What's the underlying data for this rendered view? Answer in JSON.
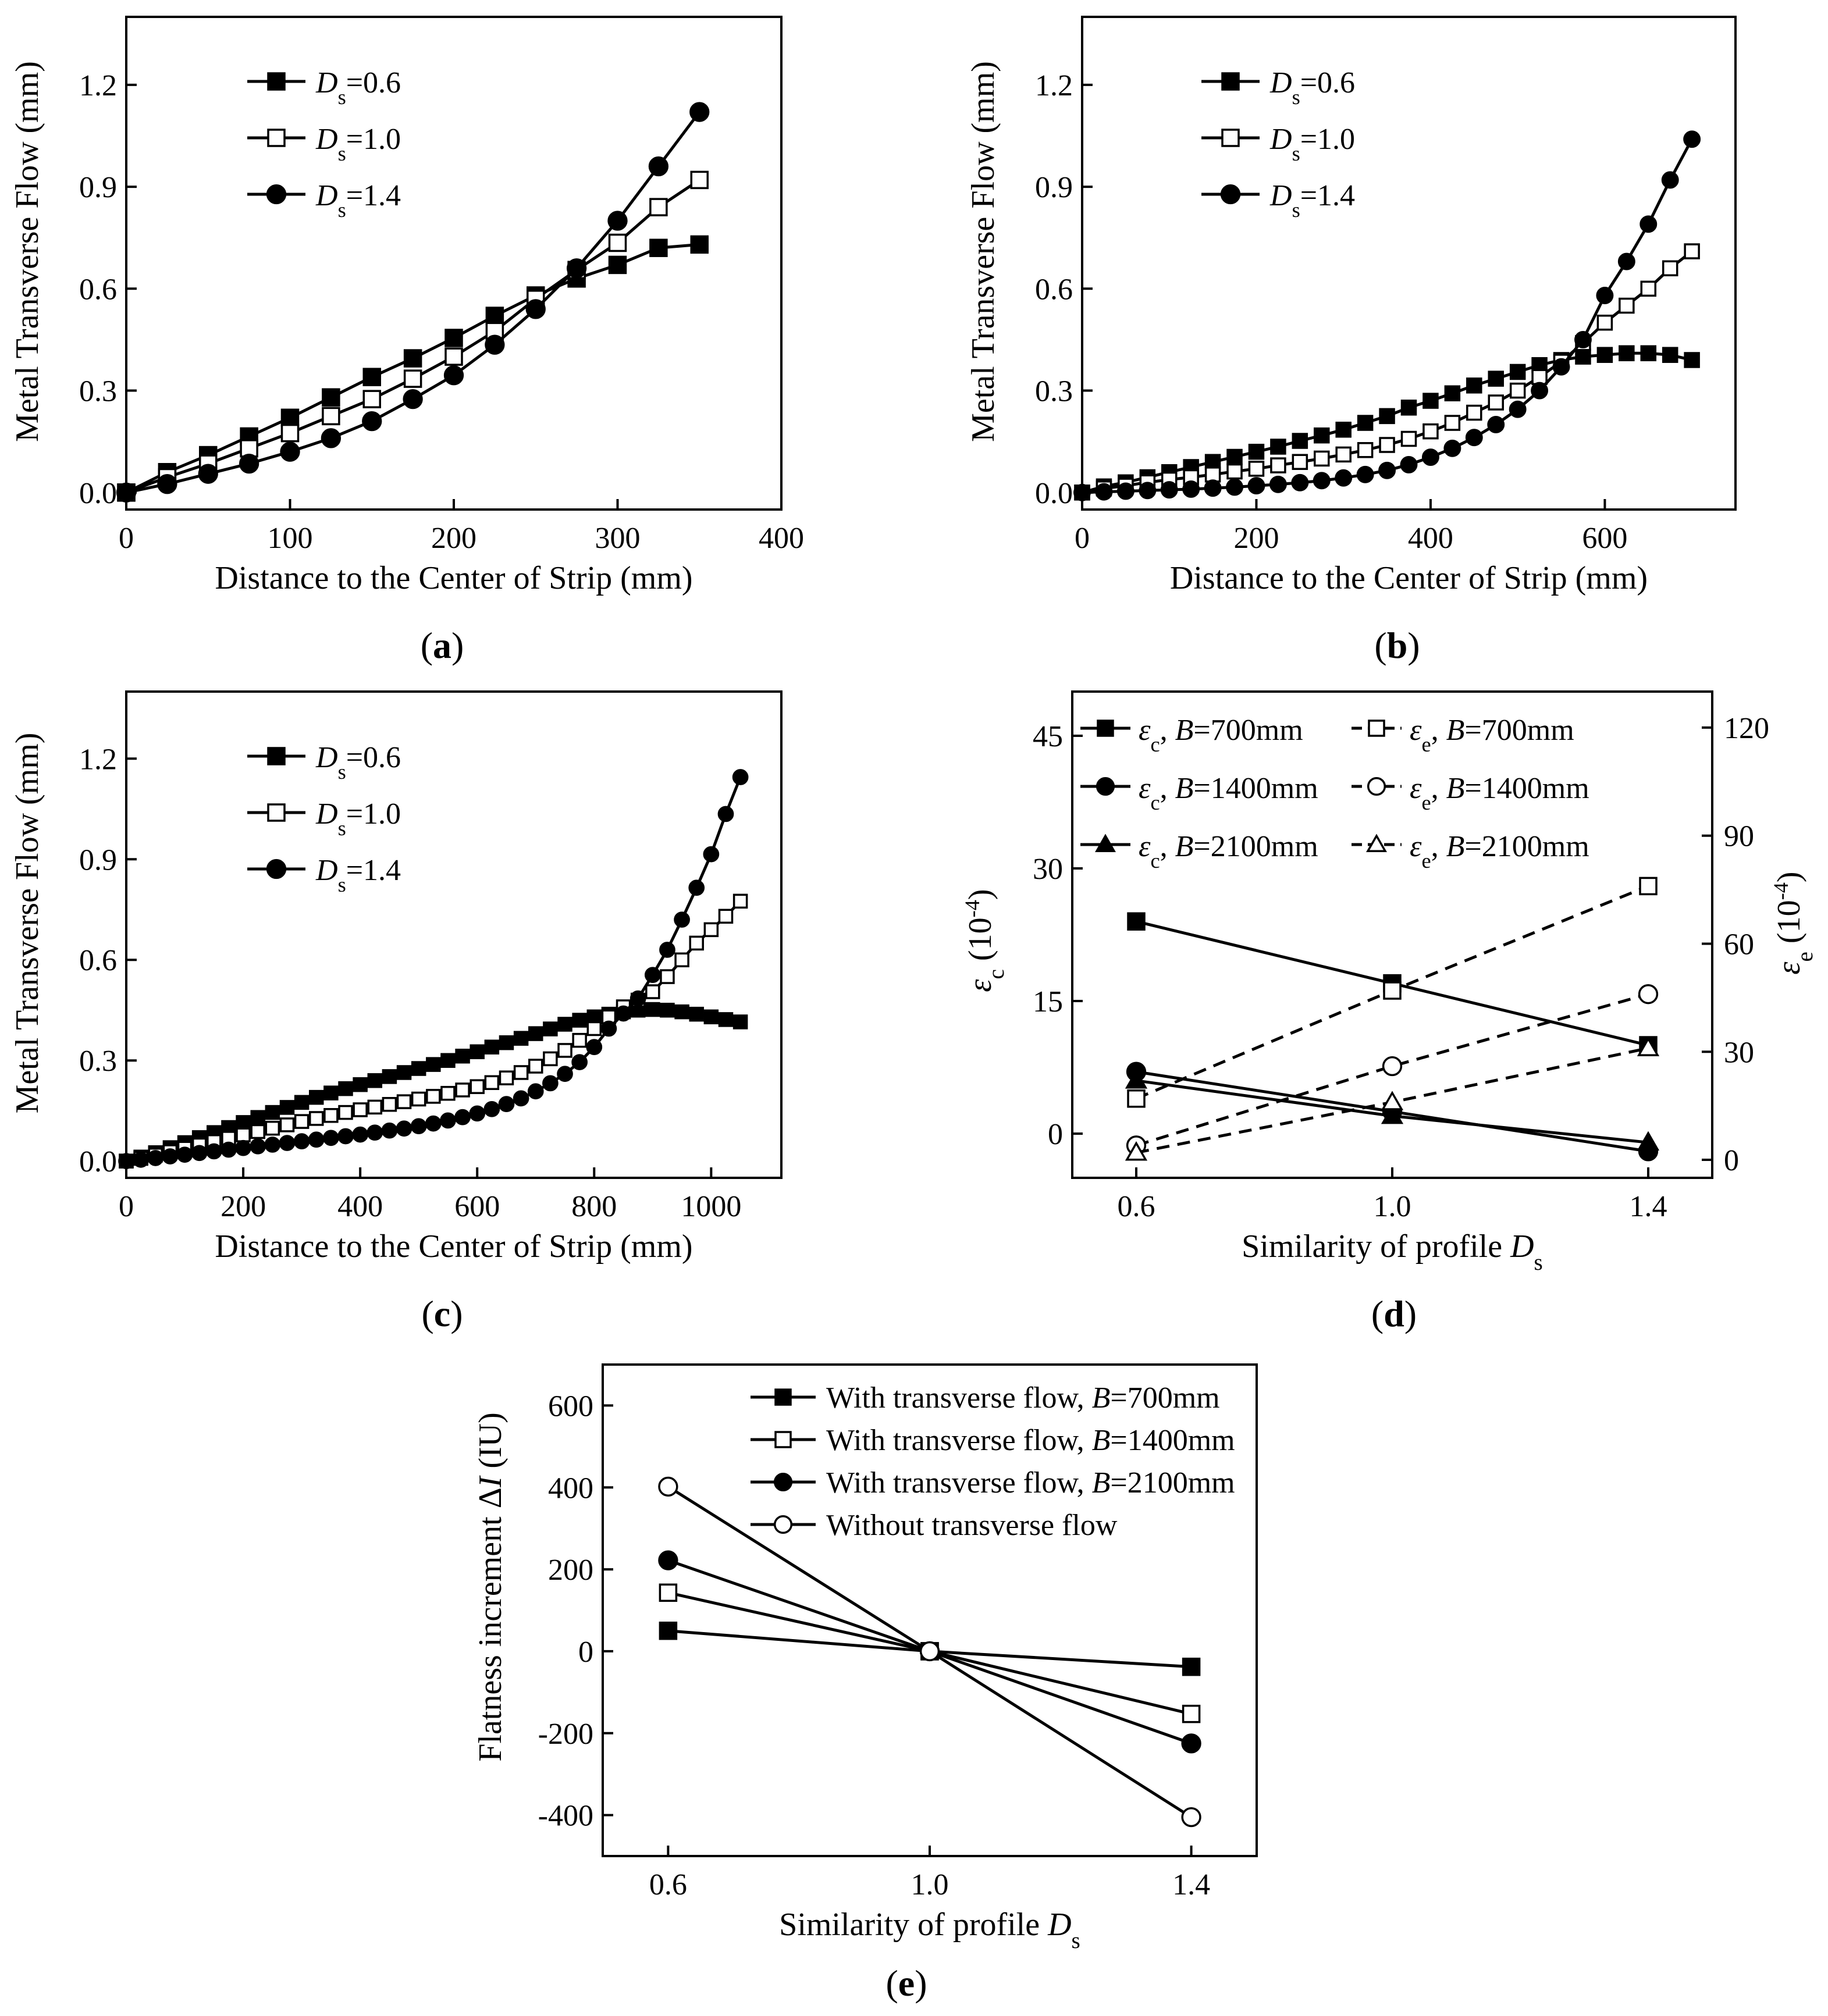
{
  "chart_data": [
    {
      "id": "a",
      "type": "line",
      "panel_label": "a",
      "xlabel": "Distance to the Center of Strip (mm)",
      "ylabel": "Metal Transverse Flow (mm)",
      "xlim": [
        0,
        400
      ],
      "ylim": [
        -0.05,
        1.4
      ],
      "xticks": [
        0,
        100,
        200,
        300,
        400
      ],
      "yticks": [
        0.0,
        0.3,
        0.6,
        0.9,
        1.2
      ],
      "x": [
        0,
        25,
        50,
        75,
        100,
        125,
        150,
        175,
        200,
        225,
        250,
        275,
        300,
        325,
        350
      ],
      "series": [
        {
          "name": "Ds=0.6",
          "name_main": "D",
          "name_sub": "s",
          "name_rest": "=0.6",
          "marker": "filled-square",
          "values": [
            0,
            0.06,
            0.11,
            0.165,
            0.22,
            0.28,
            0.34,
            0.395,
            0.455,
            0.52,
            0.58,
            0.63,
            0.67,
            0.72,
            0.73
          ]
        },
        {
          "name": "Ds=1.0",
          "name_main": "D",
          "name_sub": "s",
          "name_rest": "=1.0",
          "marker": "open-square",
          "values": [
            0,
            0.045,
            0.085,
            0.13,
            0.175,
            0.225,
            0.275,
            0.335,
            0.4,
            0.475,
            0.57,
            0.655,
            0.735,
            0.84,
            0.92
          ]
        },
        {
          "name": "Ds=1.4",
          "name_main": "D",
          "name_sub": "s",
          "name_rest": "=1.4",
          "marker": "filled-circle",
          "values": [
            0,
            0.025,
            0.055,
            0.085,
            0.12,
            0.16,
            0.21,
            0.275,
            0.345,
            0.435,
            0.54,
            0.66,
            0.8,
            0.96,
            1.12
          ]
        }
      ]
    },
    {
      "id": "b",
      "type": "line",
      "panel_label": "b",
      "xlabel": "Distance to the Center of Strip (mm)",
      "ylabel": "Metal Transverse Flow (mm)",
      "xlim": [
        0,
        750
      ],
      "ylim": [
        -0.05,
        1.4
      ],
      "xticks": [
        0,
        200,
        400,
        600
      ],
      "yticks": [
        0.0,
        0.3,
        0.6,
        0.9,
        1.2
      ],
      "x": [
        0,
        25,
        50,
        75,
        100,
        125,
        150,
        175,
        200,
        225,
        250,
        275,
        300,
        325,
        350,
        375,
        400,
        425,
        450,
        475,
        500,
        525,
        550,
        575,
        600,
        625,
        650,
        675,
        700
      ],
      "series": [
        {
          "name": "Ds=0.6",
          "name_main": "D",
          "name_sub": "s",
          "name_rest": "=0.6",
          "marker": "filled-square",
          "values": [
            0,
            0.018,
            0.03,
            0.045,
            0.06,
            0.075,
            0.09,
            0.105,
            0.12,
            0.135,
            0.152,
            0.168,
            0.185,
            0.205,
            0.225,
            0.25,
            0.27,
            0.292,
            0.315,
            0.335,
            0.355,
            0.375,
            0.39,
            0.4,
            0.405,
            0.41,
            0.41,
            0.405,
            0.39
          ]
        },
        {
          "name": "Ds=1.0",
          "name_main": "D",
          "name_sub": "s",
          "name_rest": "=1.0",
          "marker": "open-square",
          "values": [
            0,
            0.012,
            0.02,
            0.03,
            0.038,
            0.045,
            0.053,
            0.062,
            0.07,
            0.08,
            0.09,
            0.1,
            0.112,
            0.125,
            0.14,
            0.158,
            0.18,
            0.205,
            0.235,
            0.265,
            0.3,
            0.34,
            0.385,
            0.44,
            0.5,
            0.55,
            0.6,
            0.66,
            0.71
          ]
        },
        {
          "name": "Ds=1.4",
          "name_main": "D",
          "name_sub": "s",
          "name_rest": "=1.4",
          "marker": "filled-circle",
          "values": [
            0,
            0.002,
            0.004,
            0.006,
            0.008,
            0.01,
            0.013,
            0.016,
            0.02,
            0.024,
            0.029,
            0.035,
            0.043,
            0.053,
            0.065,
            0.082,
            0.104,
            0.13,
            0.162,
            0.2,
            0.245,
            0.3,
            0.37,
            0.45,
            0.58,
            0.68,
            0.79,
            0.92,
            1.04
          ]
        }
      ]
    },
    {
      "id": "c",
      "type": "line",
      "panel_label": "c",
      "xlabel": "Distance to the Center of Strip (mm)",
      "ylabel": "Metal Transverse Flow (mm)",
      "xlim": [
        0,
        1120
      ],
      "ylim": [
        -0.05,
        1.4
      ],
      "xticks": [
        0,
        200,
        400,
        600,
        800,
        1000
      ],
      "yticks": [
        0.0,
        0.3,
        0.6,
        0.9,
        1.2
      ],
      "x": [
        0,
        25,
        50,
        75,
        100,
        125,
        150,
        175,
        200,
        225,
        250,
        275,
        300,
        325,
        350,
        375,
        400,
        425,
        450,
        475,
        500,
        525,
        550,
        575,
        600,
        625,
        650,
        675,
        700,
        725,
        750,
        775,
        800,
        825,
        850,
        875,
        900,
        925,
        950,
        975,
        1000,
        1025,
        1050
      ],
      "series": [
        {
          "name": "Ds=0.6",
          "name_main": "D",
          "name_sub": "s",
          "name_rest": "=0.6",
          "marker": "filled-square",
          "values": [
            0,
            0.012,
            0.025,
            0.04,
            0.055,
            0.07,
            0.085,
            0.1,
            0.115,
            0.13,
            0.145,
            0.16,
            0.175,
            0.19,
            0.203,
            0.216,
            0.228,
            0.24,
            0.252,
            0.264,
            0.276,
            0.288,
            0.3,
            0.313,
            0.326,
            0.34,
            0.353,
            0.366,
            0.38,
            0.394,
            0.408,
            0.42,
            0.43,
            0.438,
            0.445,
            0.45,
            0.452,
            0.45,
            0.445,
            0.438,
            0.43,
            0.422,
            0.415
          ]
        },
        {
          "name": "Ds=1.0",
          "name_main": "D",
          "name_sub": "s",
          "name_rest": "=1.0",
          "marker": "open-square",
          "values": [
            0,
            0.008,
            0.018,
            0.028,
            0.038,
            0.048,
            0.058,
            0.068,
            0.078,
            0.088,
            0.098,
            0.108,
            0.118,
            0.127,
            0.136,
            0.145,
            0.153,
            0.161,
            0.169,
            0.177,
            0.185,
            0.193,
            0.202,
            0.212,
            0.222,
            0.234,
            0.248,
            0.264,
            0.283,
            0.305,
            0.33,
            0.36,
            0.395,
            0.43,
            0.46,
            0.48,
            0.505,
            0.55,
            0.6,
            0.65,
            0.69,
            0.73,
            0.775
          ]
        },
        {
          "name": "Ds=1.4",
          "name_main": "D",
          "name_sub": "s",
          "name_rest": "=1.4",
          "marker": "filled-circle",
          "values": [
            0,
            0.004,
            0.009,
            0.014,
            0.019,
            0.024,
            0.029,
            0.034,
            0.039,
            0.044,
            0.049,
            0.054,
            0.059,
            0.064,
            0.069,
            0.074,
            0.079,
            0.085,
            0.091,
            0.097,
            0.104,
            0.112,
            0.121,
            0.131,
            0.142,
            0.155,
            0.17,
            0.187,
            0.208,
            0.232,
            0.26,
            0.295,
            0.34,
            0.395,
            0.44,
            0.485,
            0.555,
            0.63,
            0.72,
            0.815,
            0.915,
            1.035,
            1.145
          ]
        }
      ]
    },
    {
      "id": "d",
      "type": "line",
      "panel_label": "d",
      "xlabel_main": "Similarity of profile ",
      "xlabel_var": "D",
      "xlabel_sub": "s",
      "ylabel_left_sym": "ε",
      "ylabel_left_sub": "c",
      "ylabel_left_unit": "(10",
      "ylabel_left_exp": "-4",
      "ylabel_left_close": ")",
      "ylabel_right_sym": "ε",
      "ylabel_right_sub": "e",
      "ylabel_right_unit": "(10",
      "ylabel_right_exp": "-4",
      "ylabel_right_close": ")",
      "xlim": [
        0.5,
        1.5
      ],
      "ylim_left": [
        -5,
        50
      ],
      "ylim_right": [
        -5,
        130
      ],
      "xticks": [
        "0.6",
        "1.0",
        "1.4"
      ],
      "xtick_values": [
        0.6,
        1.0,
        1.4
      ],
      "yticks_left": [
        0,
        15,
        30,
        45
      ],
      "yticks_right": [
        0,
        30,
        60,
        90,
        120
      ],
      "x": [
        0.6,
        1.0,
        1.4
      ],
      "series": [
        {
          "name": "εc, B=700mm",
          "sym": "ε",
          "sub": "c",
          "sep": ", ",
          "bvar": "B",
          "brest": "=700mm",
          "axis": "left",
          "marker": "filled-square",
          "dash": false,
          "values": [
            24,
            17,
            10
          ]
        },
        {
          "name": "εc, B=1400mm",
          "sym": "ε",
          "sub": "c",
          "sep": ", ",
          "bvar": "B",
          "brest": "=1400mm",
          "axis": "left",
          "marker": "filled-circle",
          "dash": false,
          "values": [
            7,
            2.5,
            -2
          ]
        },
        {
          "name": "εc, B=2100mm",
          "sym": "ε",
          "sub": "c",
          "sep": ", ",
          "bvar": "B",
          "brest": "=2100mm",
          "axis": "left",
          "marker": "filled-triangle",
          "dash": false,
          "values": [
            6,
            2,
            -1
          ]
        },
        {
          "name": "εe, B=700mm",
          "sym": "ε",
          "sub": "e",
          "sep": ", ",
          "bvar": "B",
          "brest": "=700mm",
          "axis": "right",
          "marker": "open-square",
          "dash": true,
          "values": [
            17,
            47,
            76
          ]
        },
        {
          "name": "εe, B=1400mm",
          "sym": "ε",
          "sub": "e",
          "sep": ", ",
          "bvar": "B",
          "brest": "=1400mm",
          "axis": "right",
          "marker": "open-circle",
          "dash": true,
          "values": [
            4,
            26,
            46
          ]
        },
        {
          "name": "εe, B=2100mm",
          "sym": "ε",
          "sub": "e",
          "sep": ", ",
          "bvar": "B",
          "brest": "=2100mm",
          "axis": "right",
          "marker": "open-triangle",
          "dash": true,
          "values": [
            2,
            16,
            31
          ]
        }
      ]
    },
    {
      "id": "e",
      "type": "line",
      "panel_label": "e",
      "xlabel_main": "Similarity of profile ",
      "xlabel_var": "D",
      "xlabel_sub": "s",
      "ylabel_main": "Flatness increment Δ",
      "ylabel_var": "I",
      "ylabel_rest": " (IU)",
      "xlim": [
        0.5,
        1.5
      ],
      "ylim": [
        -500,
        700
      ],
      "xticks": [
        "0.6",
        "1.0",
        "1.4"
      ],
      "xtick_values": [
        0.6,
        1.0,
        1.4
      ],
      "yticks": [
        -400,
        -200,
        0,
        200,
        400,
        600
      ],
      "x": [
        0.6,
        1.0,
        1.4
      ],
      "series": [
        {
          "name": "With transverse flow, B=700mm",
          "prefix": "With transverse flow, ",
          "bvar": "B",
          "brest": "=700mm",
          "marker": "filled-square",
          "values": [
            50,
            0,
            -38
          ]
        },
        {
          "name": "With transverse flow, B=1400mm",
          "prefix": "With transverse flow, ",
          "bvar": "B",
          "brest": "=1400mm",
          "marker": "open-square",
          "values": [
            143,
            0,
            -153
          ]
        },
        {
          "name": "With transverse flow, B=2100mm",
          "prefix": "With transverse flow, ",
          "bvar": "B",
          "brest": "=2100mm",
          "marker": "filled-circle",
          "values": [
            222,
            0,
            -225
          ]
        },
        {
          "name": "Without transverse flow",
          "prefix": "Without transverse flow",
          "bvar": "",
          "brest": "",
          "marker": "open-circle",
          "values": [
            402,
            0,
            -405
          ]
        }
      ]
    }
  ]
}
